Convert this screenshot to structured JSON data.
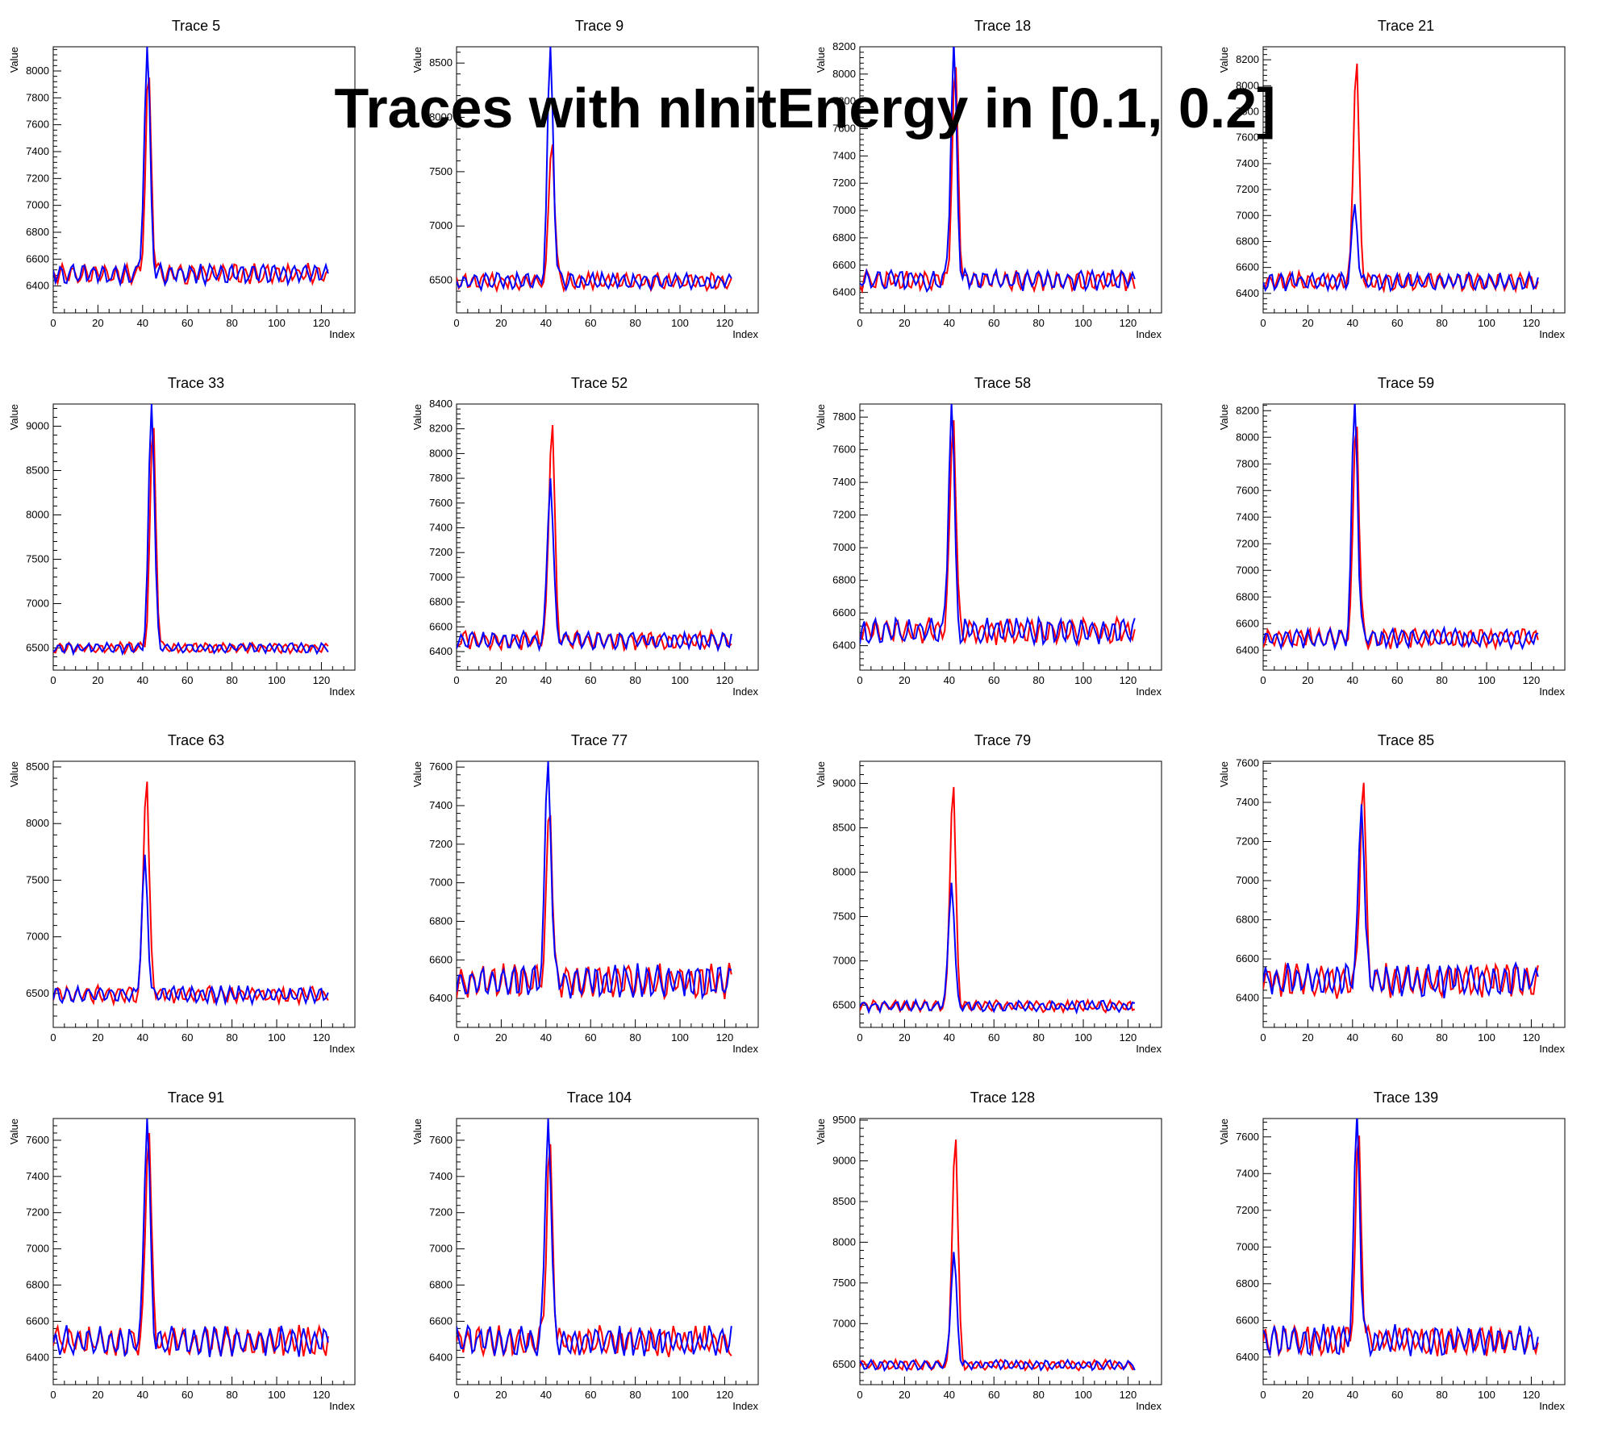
{
  "title": "Traces with nInitEnergy in [0.1, 0.2]",
  "colors": {
    "series_a": "#ff0000",
    "series_b": "#0000ff",
    "frame": "#000000",
    "background": "#ffffff"
  },
  "chart_data": [
    {
      "type": "line",
      "title": "Trace 5",
      "xlabel": "Index",
      "ylabel": "Value",
      "xlim": [
        0,
        135
      ],
      "ylim": [
        6200,
        8180
      ],
      "xticks": [
        0,
        20,
        40,
        60,
        80,
        100,
        120
      ],
      "yticks": [
        6400,
        6600,
        6800,
        7000,
        7200,
        7400,
        7600,
        7800,
        8000
      ],
      "peak": {
        "center": 42,
        "a": 7950,
        "b": 8180
      },
      "baseline": {
        "level": 6490,
        "amp": 85
      }
    },
    {
      "type": "line",
      "title": "Trace 9",
      "xlabel": "Index",
      "ylabel": "Value",
      "xlim": [
        0,
        135
      ],
      "ylim": [
        6200,
        8650
      ],
      "xticks": [
        0,
        20,
        40,
        60,
        80,
        100,
        120
      ],
      "yticks": [
        6500,
        7000,
        7500,
        8000,
        8500
      ],
      "peak": {
        "center": 42,
        "a": 7750,
        "b": 8650
      },
      "baseline": {
        "level": 6490,
        "amp": 90
      }
    },
    {
      "type": "line",
      "title": "Trace 18",
      "xlabel": "Index",
      "ylabel": "Value",
      "xlim": [
        0,
        135
      ],
      "ylim": [
        6250,
        8200
      ],
      "xticks": [
        0,
        20,
        40,
        60,
        80,
        100,
        120
      ],
      "yticks": [
        6400,
        6600,
        6800,
        7000,
        7200,
        7400,
        7600,
        7800,
        8000,
        8200
      ],
      "peak": {
        "center": 42,
        "a": 8050,
        "b": 8190
      },
      "baseline": {
        "level": 6490,
        "amp": 85
      }
    },
    {
      "type": "line",
      "title": "Trace 21",
      "xlabel": "Index",
      "ylabel": "Value",
      "xlim": [
        0,
        135
      ],
      "ylim": [
        6250,
        8300
      ],
      "xticks": [
        0,
        20,
        40,
        60,
        80,
        100,
        120
      ],
      "yticks": [
        6400,
        6600,
        6800,
        7000,
        7200,
        7400,
        7600,
        7800,
        8000,
        8200
      ],
      "peak": {
        "center": 41,
        "a": 8170,
        "b": 7060
      },
      "baseline": {
        "level": 6490,
        "amp": 80
      }
    },
    {
      "type": "line",
      "title": "Trace 33",
      "xlabel": "Index",
      "ylabel": "Value",
      "xlim": [
        0,
        135
      ],
      "ylim": [
        6250,
        9250
      ],
      "xticks": [
        0,
        20,
        40,
        60,
        80,
        100,
        120
      ],
      "yticks": [
        6500,
        7000,
        7500,
        8000,
        8500,
        9000
      ],
      "peak": {
        "center": 44,
        "a": 8980,
        "b": 9250
      },
      "baseline": {
        "level": 6500,
        "amp": 70
      }
    },
    {
      "type": "line",
      "title": "Trace 52",
      "xlabel": "Index",
      "ylabel": "Value",
      "xlim": [
        0,
        135
      ],
      "ylim": [
        6250,
        8400
      ],
      "xticks": [
        0,
        20,
        40,
        60,
        80,
        100,
        120
      ],
      "yticks": [
        6400,
        6600,
        6800,
        7000,
        7200,
        7400,
        7600,
        7800,
        8000,
        8200,
        8400
      ],
      "peak": {
        "center": 42,
        "a": 8230,
        "b": 7800
      },
      "baseline": {
        "level": 6490,
        "amp": 85
      }
    },
    {
      "type": "line",
      "title": "Trace 58",
      "xlabel": "Index",
      "ylabel": "Value",
      "xlim": [
        0,
        135
      ],
      "ylim": [
        6250,
        7880
      ],
      "xticks": [
        0,
        20,
        40,
        60,
        80,
        100,
        120
      ],
      "yticks": [
        6400,
        6600,
        6800,
        7000,
        7200,
        7400,
        7600,
        7800
      ],
      "peak": {
        "center": 41,
        "a": 7780,
        "b": 7880
      },
      "baseline": {
        "level": 6490,
        "amp": 90
      }
    },
    {
      "type": "line",
      "title": "Trace 59",
      "xlabel": "Index",
      "ylabel": "Value",
      "xlim": [
        0,
        135
      ],
      "ylim": [
        6250,
        8250
      ],
      "xticks": [
        0,
        20,
        40,
        60,
        80,
        100,
        120
      ],
      "yticks": [
        6400,
        6600,
        6800,
        7000,
        7200,
        7400,
        7600,
        7800,
        8000,
        8200
      ],
      "peak": {
        "center": 41,
        "a": 8080,
        "b": 8250
      },
      "baseline": {
        "level": 6490,
        "amp": 85
      }
    },
    {
      "type": "line",
      "title": "Trace 63",
      "xlabel": "Index",
      "ylabel": "Value",
      "xlim": [
        0,
        135
      ],
      "ylim": [
        6200,
        8550
      ],
      "xticks": [
        0,
        20,
        40,
        60,
        80,
        100,
        120
      ],
      "yticks": [
        6500,
        7000,
        7500,
        8000,
        8500
      ],
      "peak": {
        "center": 41,
        "a": 8370,
        "b": 7660
      },
      "baseline": {
        "level": 6490,
        "amp": 85
      }
    },
    {
      "type": "line",
      "title": "Trace 77",
      "xlabel": "Index",
      "ylabel": "Value",
      "xlim": [
        0,
        135
      ],
      "ylim": [
        6250,
        7630
      ],
      "xticks": [
        0,
        20,
        40,
        60,
        80,
        100,
        120
      ],
      "yticks": [
        6400,
        6600,
        6800,
        7000,
        7200,
        7400,
        7600
      ],
      "peak": {
        "center": 41,
        "a": 7350,
        "b": 7630
      },
      "baseline": {
        "level": 6490,
        "amp": 100
      }
    },
    {
      "type": "line",
      "title": "Trace 79",
      "xlabel": "Index",
      "ylabel": "Value",
      "xlim": [
        0,
        135
      ],
      "ylim": [
        6250,
        9250
      ],
      "xticks": [
        0,
        20,
        40,
        60,
        80,
        100,
        120
      ],
      "yticks": [
        6500,
        7000,
        7500,
        8000,
        8500,
        9000
      ],
      "peak": {
        "center": 41,
        "a": 8960,
        "b": 7880
      },
      "baseline": {
        "level": 6490,
        "amp": 75
      }
    },
    {
      "type": "line",
      "title": "Trace 85",
      "xlabel": "Index",
      "ylabel": "Value",
      "xlim": [
        0,
        135
      ],
      "ylim": [
        6250,
        7610
      ],
      "xticks": [
        0,
        20,
        40,
        60,
        80,
        100,
        120
      ],
      "yticks": [
        6400,
        6600,
        6800,
        7000,
        7200,
        7400,
        7600
      ],
      "peak": {
        "center": 44,
        "a": 7500,
        "b": 7390
      },
      "baseline": {
        "level": 6490,
        "amp": 100
      }
    },
    {
      "type": "line",
      "title": "Trace 91",
      "xlabel": "Index",
      "ylabel": "Value",
      "xlim": [
        0,
        135
      ],
      "ylim": [
        6250,
        7720
      ],
      "xticks": [
        0,
        20,
        40,
        60,
        80,
        100,
        120
      ],
      "yticks": [
        6400,
        6600,
        6800,
        7000,
        7200,
        7400,
        7600
      ],
      "peak": {
        "center": 42,
        "a": 7640,
        "b": 7720
      },
      "baseline": {
        "level": 6490,
        "amp": 95
      }
    },
    {
      "type": "line",
      "title": "Trace 104",
      "xlabel": "Index",
      "ylabel": "Value",
      "xlim": [
        0,
        135
      ],
      "ylim": [
        6250,
        7720
      ],
      "xticks": [
        0,
        20,
        40,
        60,
        80,
        100,
        120
      ],
      "yticks": [
        6400,
        6600,
        6800,
        7000,
        7200,
        7400,
        7600
      ],
      "peak": {
        "center": 41,
        "a": 7560,
        "b": 7720
      },
      "baseline": {
        "level": 6490,
        "amp": 95
      }
    },
    {
      "type": "line",
      "title": "Trace 128",
      "xlabel": "Index",
      "ylabel": "Value",
      "xlim": [
        0,
        135
      ],
      "ylim": [
        6250,
        9520
      ],
      "xticks": [
        0,
        20,
        40,
        60,
        80,
        100,
        120
      ],
      "yticks": [
        6500,
        7000,
        7500,
        8000,
        8500,
        9000,
        9500
      ],
      "peak": {
        "center": 42,
        "a": 9260,
        "b": 7880
      },
      "baseline": {
        "level": 6490,
        "amp": 70
      }
    },
    {
      "type": "line",
      "title": "Trace 139",
      "xlabel": "Index",
      "ylabel": "Value",
      "xlim": [
        0,
        135
      ],
      "ylim": [
        6250,
        7700
      ],
      "xticks": [
        0,
        20,
        40,
        60,
        80,
        100,
        120
      ],
      "yticks": [
        6400,
        6600,
        6800,
        7000,
        7200,
        7400,
        7600
      ],
      "peak": {
        "center": 42,
        "a": 7600,
        "b": 7700
      },
      "baseline": {
        "level": 6490,
        "amp": 95
      }
    }
  ]
}
